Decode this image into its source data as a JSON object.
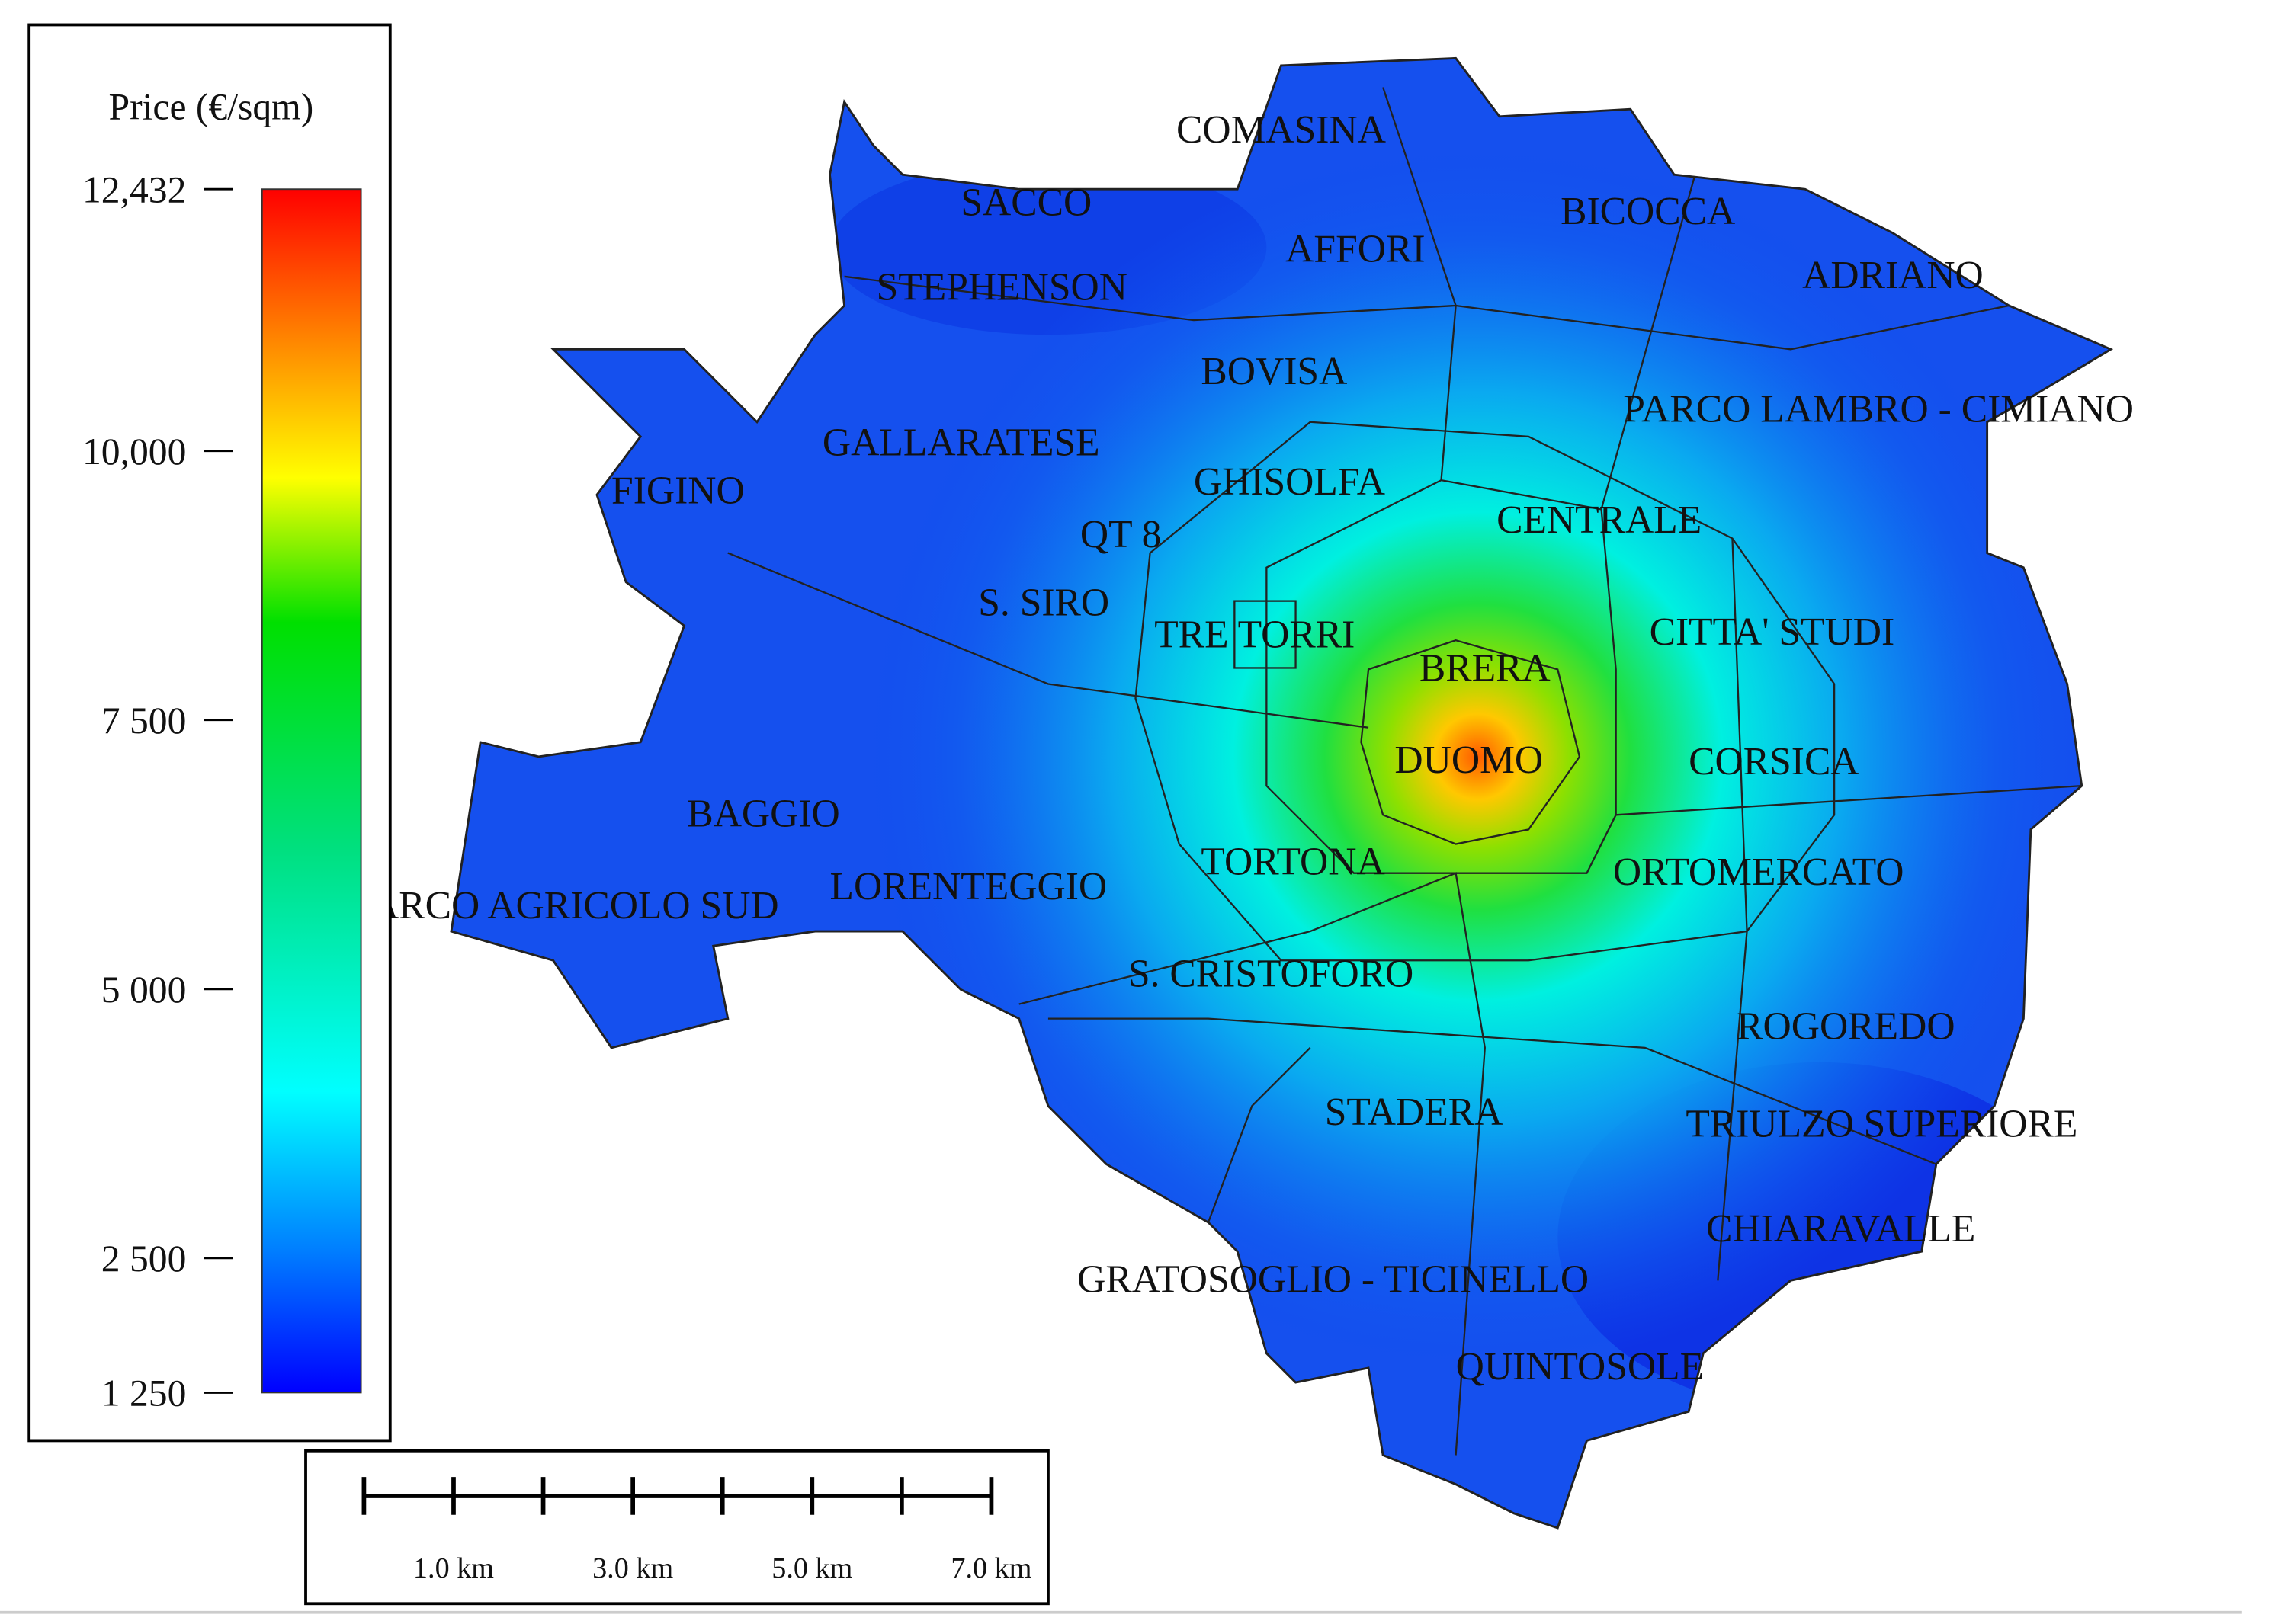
{
  "legend": {
    "title": "Price (€/sqm)",
    "range": [
      1250,
      12432
    ],
    "ticks": [
      {
        "value": 12432,
        "label": "12,432"
      },
      {
        "value": 10000,
        "label": "10,000"
      },
      {
        "value": 7500,
        "label": "7 500"
      },
      {
        "value": 5000,
        "label": "5 000"
      },
      {
        "value": 2500,
        "label": "2 500"
      },
      {
        "value": 1250,
        "label": "1 250"
      }
    ]
  },
  "scale_bar": {
    "labels": [
      "1.0 km",
      "3.0 km",
      "5.0 km",
      "7.0 km"
    ]
  },
  "districts": [
    "COMASINA",
    "SACCO",
    "BICOCCA",
    "AFFORI",
    "ADRIANO",
    "STEPHENSON",
    "BOVISA",
    "PARCO LAMBRO - CIMIANO",
    "GALLARATESE",
    "FIGINO",
    "GHISOLFA",
    "CENTRALE",
    "QT 8",
    "S. SIRO",
    "TRE TORRI",
    "CITTA' STUDI",
    "BRERA",
    "DUOMO",
    "CORSICA",
    "BAGGIO",
    "TORTONA",
    "ORTOMERCATO",
    "LORENTEGGIO",
    "PARCO AGRICOLO SUD",
    "S. CRISTOFORO",
    "ROGOREDO",
    "STADERA",
    "TRIULZO SUPERIORE",
    "CHIARAVALLE",
    "GRATOSOGLIO - TICINELLO",
    "QUINTOSOLE"
  ]
}
